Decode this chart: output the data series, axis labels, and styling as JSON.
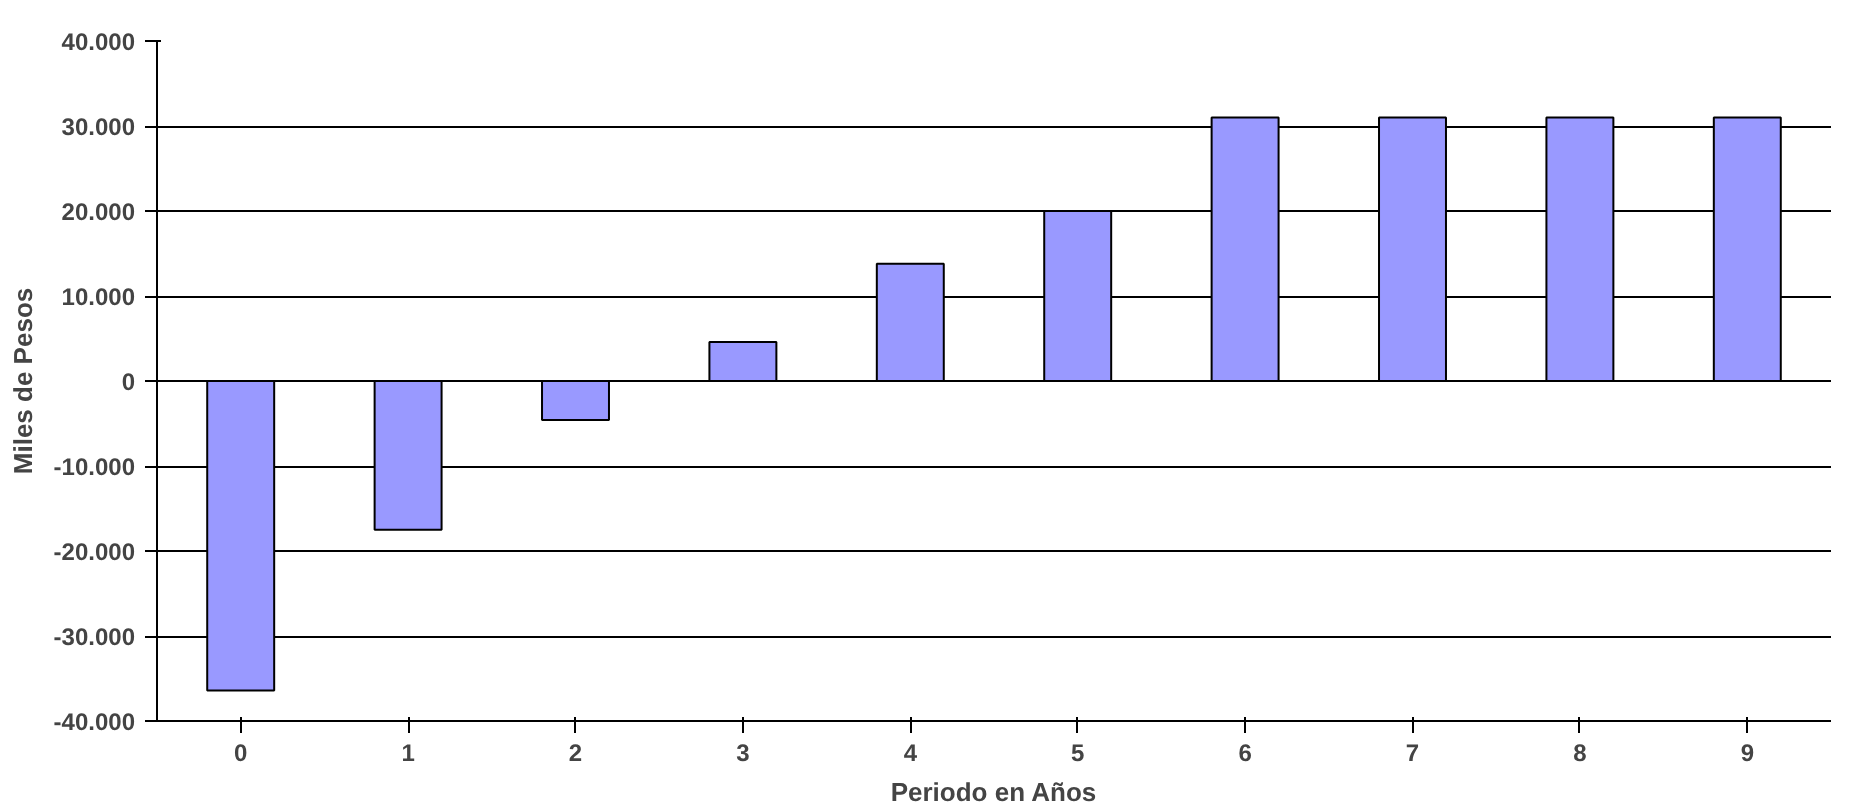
{
  "chart_data": {
    "type": "bar",
    "xlabel": "Periodo en Años",
    "ylabel": "Miles de Pesos",
    "categories": [
      "0",
      "1",
      "2",
      "3",
      "4",
      "5",
      "6",
      "7",
      "8",
      "9"
    ],
    "values": [
      -36400,
      -17500,
      -4600,
      4600,
      13800,
      20000,
      31000,
      31000,
      31000,
      31000
    ],
    "color": "#9999ff",
    "ylim": [
      -40000,
      40000
    ],
    "yticks": [
      {
        "value": -40000,
        "label": "-40.000"
      },
      {
        "value": -30000,
        "label": "-30.000"
      },
      {
        "value": -20000,
        "label": "-20.000"
      },
      {
        "value": -10000,
        "label": "-10.000"
      },
      {
        "value": 0,
        "label": "0"
      },
      {
        "value": 10000,
        "label": "10.000"
      },
      {
        "value": 20000,
        "label": "20.000"
      },
      {
        "value": 30000,
        "label": "30.000"
      },
      {
        "value": 40000,
        "label": "40.000"
      }
    ],
    "grid": "y"
  }
}
